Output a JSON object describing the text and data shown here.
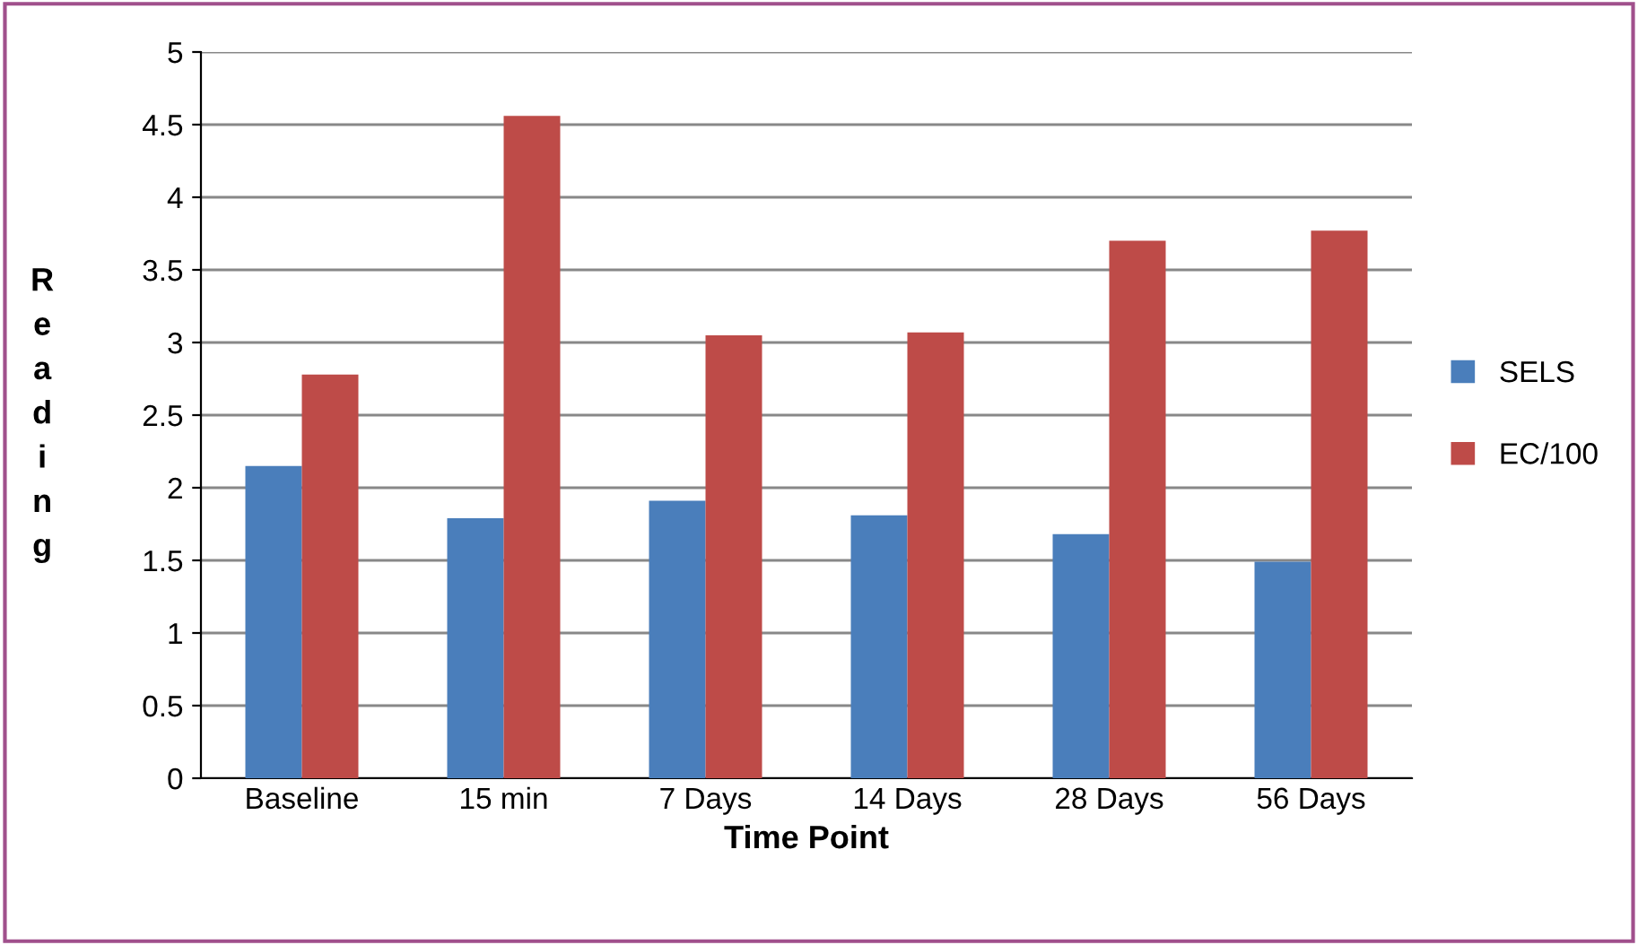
{
  "chart_data": {
    "type": "bar",
    "xlabel": "Time Point",
    "ylabel": "Reading",
    "categories": [
      "Baseline",
      "15 min",
      "7 Days",
      "14 Days",
      "28 Days",
      "56 Days"
    ],
    "series": [
      {
        "name": "SELS",
        "color": "#4a7ebb",
        "values": [
          2.15,
          1.79,
          1.91,
          1.81,
          1.68,
          1.49
        ]
      },
      {
        "name": "EC/100",
        "color": "#be4b48",
        "values": [
          2.78,
          4.56,
          3.05,
          3.07,
          3.7,
          3.77
        ]
      }
    ],
    "ylim": [
      0,
      5
    ],
    "yticks": [
      0,
      0.5,
      1,
      1.5,
      2,
      2.5,
      3,
      3.5,
      4,
      4.5,
      5
    ],
    "grid": "y",
    "legend": "right"
  }
}
